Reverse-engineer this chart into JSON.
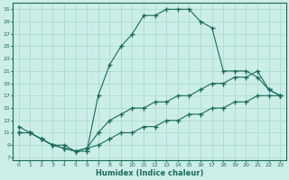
{
  "xlabel": "Humidex (Indice chaleur)",
  "bg_color": "#cceee8",
  "grid_color": "#aaddcc",
  "line_color": "#1a6b5a",
  "xlim": [
    -0.5,
    23.5
  ],
  "ylim": [
    6.5,
    32
  ],
  "xticks": [
    0,
    1,
    2,
    3,
    4,
    5,
    6,
    7,
    8,
    9,
    10,
    11,
    12,
    13,
    14,
    15,
    16,
    17,
    18,
    19,
    20,
    21,
    22,
    23
  ],
  "yticks": [
    7,
    9,
    11,
    13,
    15,
    17,
    19,
    21,
    23,
    25,
    27,
    29,
    31
  ],
  "curve1_x": [
    0,
    1,
    2,
    3,
    4,
    5,
    6,
    7,
    8,
    9,
    10,
    11,
    12,
    13,
    14,
    15,
    16,
    17,
    18,
    19,
    20,
    21,
    22,
    23
  ],
  "curve1_y": [
    12,
    11,
    10,
    9,
    9,
    8,
    8,
    17,
    22,
    25,
    27,
    30,
    30,
    31,
    31,
    31,
    29,
    28,
    21,
    21,
    21,
    20,
    18,
    17
  ],
  "curve2_x": [
    0,
    1,
    2,
    3,
    4,
    5,
    6,
    7,
    8,
    9,
    10,
    11,
    12,
    13,
    14,
    15,
    16,
    17,
    18,
    19,
    20,
    21,
    22,
    23
  ],
  "curve2_y": [
    11,
    11,
    10,
    9,
    8.5,
    8,
    8.5,
    11,
    13,
    14,
    15,
    15,
    16,
    16,
    17,
    17,
    18,
    19,
    19,
    20,
    20,
    21,
    18,
    17
  ],
  "curve3_x": [
    0,
    1,
    2,
    3,
    4,
    5,
    6,
    7,
    8,
    9,
    10,
    11,
    12,
    13,
    14,
    15,
    16,
    17,
    18,
    19,
    20,
    21,
    22,
    23
  ],
  "curve3_y": [
    11,
    11,
    10,
    9,
    8.5,
    8,
    8.5,
    9,
    10,
    11,
    11,
    12,
    12,
    13,
    13,
    14,
    14,
    15,
    15,
    16,
    16,
    17,
    17,
    17
  ]
}
